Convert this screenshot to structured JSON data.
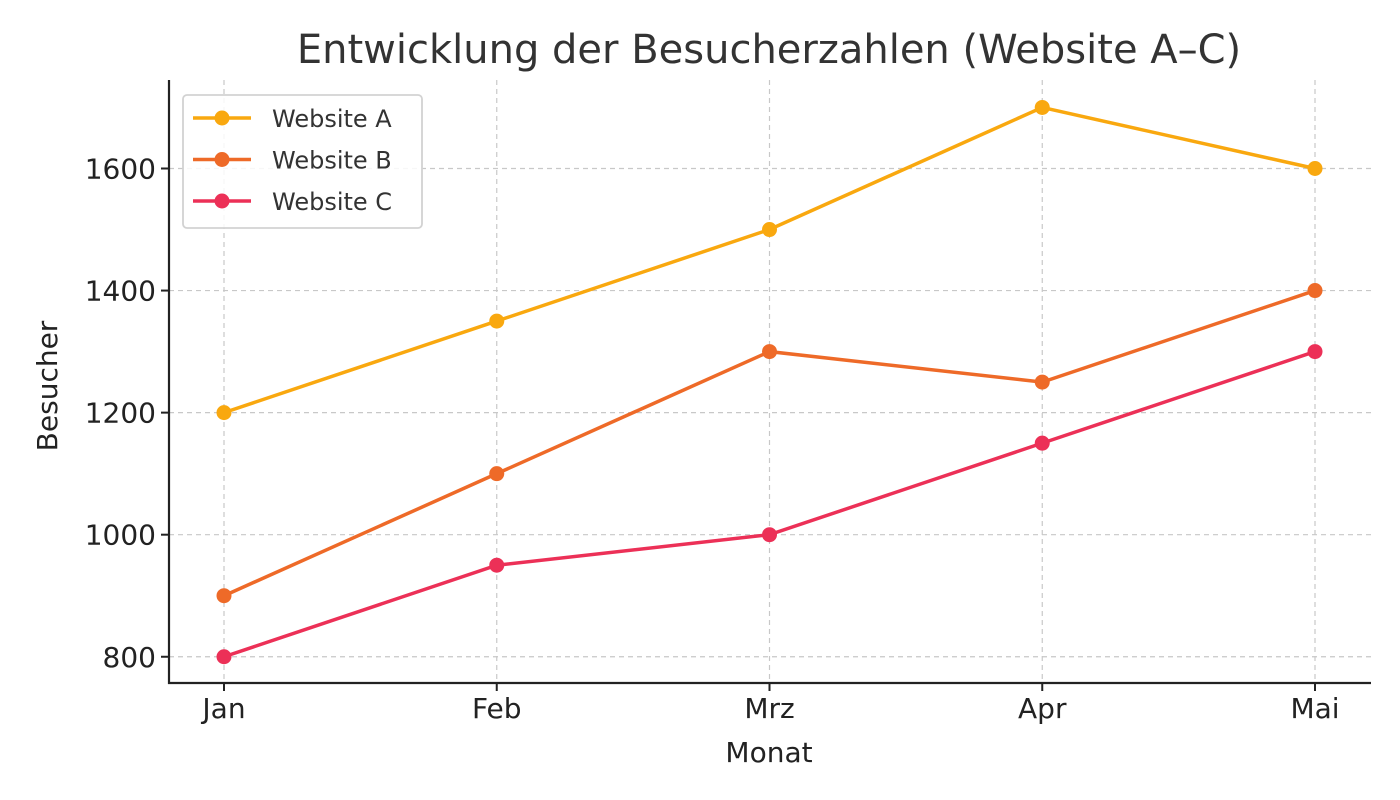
{
  "chart_data": {
    "type": "line",
    "title": "Entwicklung der Besucherzahlen (Website A–C)",
    "xlabel": "Monat",
    "ylabel": "Besucher",
    "categories": [
      "Jan",
      "Feb",
      "Mrz",
      "Apr",
      "Mai"
    ],
    "ylim": [
      757,
      1745
    ],
    "yticks": [
      800,
      1000,
      1200,
      1400,
      1600
    ],
    "grid": true,
    "legend_position": "top-left",
    "series": [
      {
        "name": "Website A",
        "color": "#F9A80F",
        "values": [
          1200,
          1350,
          1500,
          1700,
          1600
        ]
      },
      {
        "name": "Website B",
        "color": "#EE6A28",
        "values": [
          900,
          1100,
          1300,
          1250,
          1400
        ]
      },
      {
        "name": "Website C",
        "color": "#EC3057",
        "values": [
          800,
          950,
          1000,
          1150,
          1300
        ]
      }
    ]
  }
}
